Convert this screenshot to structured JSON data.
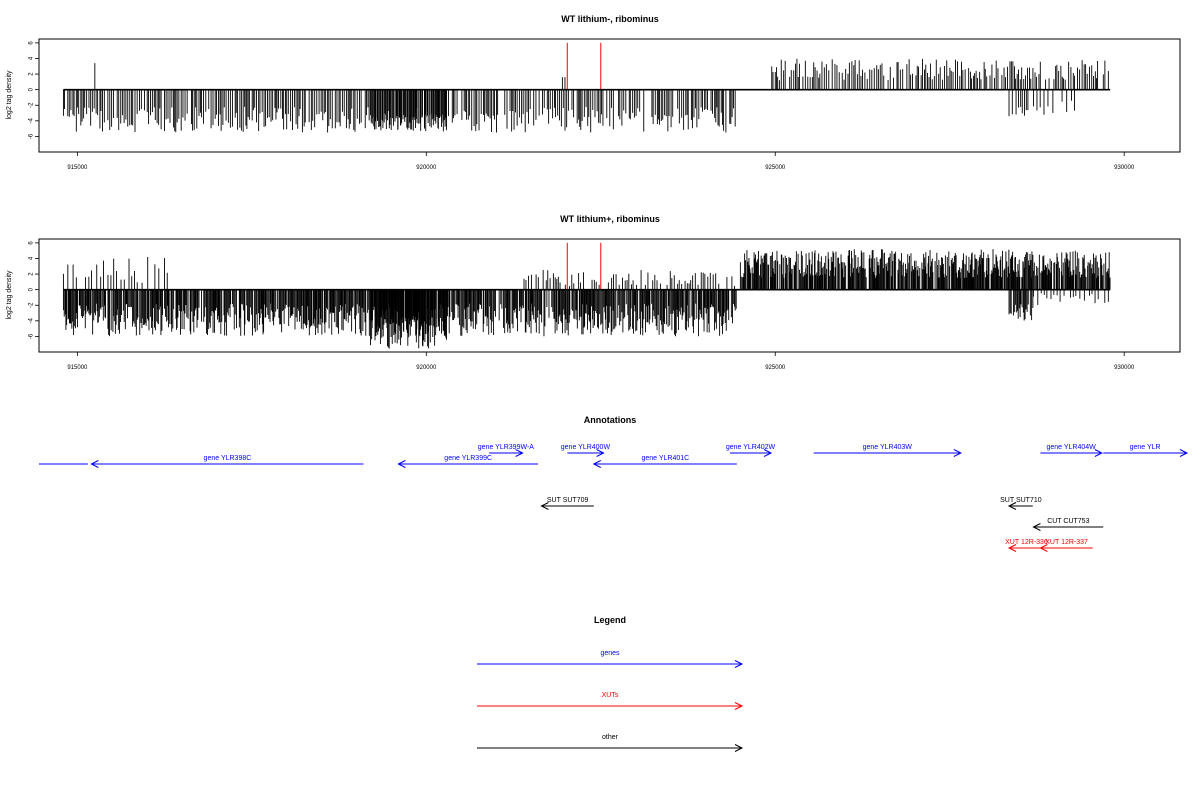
{
  "colors": {
    "axis": "#000000",
    "signal": "#000000",
    "marker": "#ff0000",
    "genes": "#0000ff",
    "xuts": "#ff0000",
    "other": "#000000"
  },
  "chart_data": [
    {
      "type": "bar",
      "title": "WT lithium-, ribominus",
      "ylabel": "log2 tag density",
      "xlim": [
        914450,
        930800
      ],
      "ylim": [
        -8,
        6.5
      ],
      "xticks": [
        915000,
        920000,
        925000,
        930000
      ],
      "xtick_labels": [
        "915000",
        "920000",
        "925000",
        "930000"
      ],
      "yticks": [
        6,
        4,
        2,
        0,
        -2,
        -4,
        -6
      ],
      "ytick_labels": [
        "6",
        "4",
        "2",
        "0",
        "-2",
        "-4",
        "-6"
      ],
      "grid": false,
      "baseline": {
        "x": [
          914800,
          929800
        ],
        "y": 0
      },
      "markers": [
        {
          "x": 922020,
          "y": 6
        },
        {
          "x": 922500,
          "y": 6
        }
      ],
      "segments": [
        {
          "x_start": 914800,
          "x_end": 924450,
          "side": "negative",
          "min": -5.5,
          "max": -2.2,
          "step": 24,
          "seed": 11
        },
        {
          "x_start": 919200,
          "x_end": 920300,
          "side": "negative",
          "min": -5.2,
          "max": -3.2,
          "step": 15,
          "seed": 12
        },
        {
          "x_start": 915250,
          "x_end": 915260,
          "side": "positive",
          "min": 3.4,
          "max": 3.4,
          "step": 20,
          "seed": 13
        },
        {
          "x_start": 921950,
          "x_end": 922000,
          "side": "positive",
          "min": 1.6,
          "max": 1.6,
          "step": 40,
          "seed": 14
        },
        {
          "x_start": 924950,
          "x_end": 929800,
          "side": "positive",
          "min": 1.2,
          "max": 4.0,
          "step": 26,
          "seed": 15
        },
        {
          "x_start": 928350,
          "x_end": 928650,
          "side": "negative",
          "min": -3.8,
          "max": -2.0,
          "step": 25,
          "seed": 16
        },
        {
          "x_start": 928700,
          "x_end": 929300,
          "side": "negative",
          "min": -3.5,
          "max": -1.0,
          "step": 60,
          "seed": 17
        }
      ]
    },
    {
      "type": "bar",
      "title": "WT lithium+, ribominus",
      "ylabel": "log2 tag density",
      "xlim": [
        914450,
        930800
      ],
      "ylim": [
        -8,
        6.5
      ],
      "xticks": [
        915000,
        920000,
        925000,
        930000
      ],
      "xtick_labels": [
        "915000",
        "920000",
        "925000",
        "930000"
      ],
      "yticks": [
        6,
        4,
        2,
        0,
        -2,
        -4,
        -6
      ],
      "ytick_labels": [
        "6",
        "4",
        "2",
        "0",
        "-2",
        "-4",
        "-6"
      ],
      "grid": false,
      "baseline": {
        "x": [
          914800,
          929800
        ],
        "y": 0
      },
      "markers": [
        {
          "x": 922020,
          "y": 6
        },
        {
          "x": 922500,
          "y": 6
        }
      ],
      "segments": [
        {
          "x_start": 914800,
          "x_end": 924450,
          "side": "negative",
          "min": -6.0,
          "max": -1.8,
          "step": 12,
          "seed": 21
        },
        {
          "x_start": 919200,
          "x_end": 920300,
          "side": "negative",
          "min": -7.6,
          "max": -3.5,
          "step": 10,
          "seed": 22
        },
        {
          "x_start": 914800,
          "x_end": 916300,
          "side": "positive",
          "min": 0.8,
          "max": 4.2,
          "step": 60,
          "seed": 23
        },
        {
          "x_start": 921400,
          "x_end": 924450,
          "side": "positive",
          "min": 0.4,
          "max": 2.6,
          "step": 35,
          "seed": 24
        },
        {
          "x_start": 924500,
          "x_end": 929800,
          "side": "positive",
          "min": 1.5,
          "max": 5.2,
          "step": 10,
          "seed": 25
        },
        {
          "x_start": 928350,
          "x_end": 928700,
          "side": "negative",
          "min": -4.0,
          "max": -1.8,
          "step": 15,
          "seed": 26
        },
        {
          "x_start": 928700,
          "x_end": 929800,
          "side": "negative",
          "min": -2.0,
          "max": -0.4,
          "step": 55,
          "seed": 27
        }
      ]
    }
  ],
  "annotations": {
    "title": "Annotations",
    "features": [
      {
        "label": "",
        "kind": "genes",
        "start": 914450,
        "end": 915150,
        "strand": "-",
        "row": 1
      },
      {
        "label": "gene YLR398C",
        "kind": "genes",
        "start": 915200,
        "end": 919100,
        "strand": "-",
        "row": 1
      },
      {
        "label": "gene YLR399W-A",
        "kind": "genes",
        "start": 920900,
        "end": 921380,
        "strand": "+",
        "row": 0
      },
      {
        "label": "gene YLR399C",
        "kind": "genes",
        "start": 919600,
        "end": 921600,
        "strand": "-",
        "row": 1
      },
      {
        "label": "gene YLR400W",
        "kind": "genes",
        "start": 922020,
        "end": 922540,
        "strand": "+",
        "row": 0
      },
      {
        "label": "gene YLR401C",
        "kind": "genes",
        "start": 922400,
        "end": 924450,
        "strand": "-",
        "row": 1
      },
      {
        "label": "gene YLR402W",
        "kind": "genes",
        "start": 924350,
        "end": 924940,
        "strand": "+",
        "row": 0
      },
      {
        "label": "gene YLR403W",
        "kind": "genes",
        "start": 925550,
        "end": 927660,
        "strand": "+",
        "row": 0
      },
      {
        "label": "gene YLR404W",
        "kind": "genes",
        "start": 928800,
        "end": 929680,
        "strand": "+",
        "row": 0
      },
      {
        "label": "gene YLR",
        "kind": "genes",
        "start": 929700,
        "end": 930900,
        "strand": "+",
        "row": 0
      },
      {
        "label": "SUT SUT709",
        "kind": "other",
        "start": 921650,
        "end": 922400,
        "strand": "-",
        "row": 2
      },
      {
        "label": "SUT SUT710",
        "kind": "other",
        "start": 928350,
        "end": 928690,
        "strand": "-",
        "row": 2
      },
      {
        "label": "CUT CUT753",
        "kind": "other",
        "start": 928700,
        "end": 929700,
        "strand": "-",
        "row": 3
      },
      {
        "label": "XUT 12R-336",
        "kind": "xuts",
        "start": 928350,
        "end": 928850,
        "strand": "-",
        "row": 4
      },
      {
        "label": "XUT 12R-337",
        "kind": "xuts",
        "start": 928800,
        "end": 929550,
        "strand": "-",
        "row": 4
      }
    ]
  },
  "legend": {
    "title": "Legend",
    "items": [
      {
        "label": "genes",
        "kind": "genes"
      },
      {
        "label": "XUTs",
        "kind": "xuts"
      },
      {
        "label": "other",
        "kind": "other"
      }
    ]
  }
}
